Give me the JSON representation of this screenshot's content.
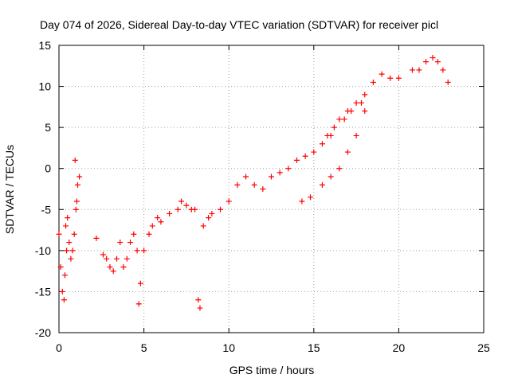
{
  "chart_data": {
    "type": "scatter",
    "title": "Day 074 of 2026, Sidereal Day-to-day VTEC variation (SDTVAR) for receiver picl",
    "xlabel": "GPS time / hours",
    "ylabel": "SDTVAR / TECUs",
    "xlim": [
      0,
      25
    ],
    "ylim": [
      -20,
      15
    ],
    "xticks": [
      0,
      5,
      10,
      15,
      20,
      25
    ],
    "yticks": [
      -20,
      -15,
      -10,
      -5,
      0,
      5,
      10,
      15
    ],
    "xtick_labels": [
      "0",
      "5",
      "10",
      "15",
      "20",
      "25"
    ],
    "ytick_labels": [
      "-20",
      "-15",
      "-10",
      "-5",
      "0",
      "5",
      "10",
      "15"
    ],
    "grid": true,
    "marker": "+",
    "series": [
      {
        "name": "SDTVAR",
        "color": "#ff0000",
        "x": [
          0.0,
          0.1,
          0.2,
          0.3,
          0.4,
          0.5,
          0.6,
          0.7,
          0.8,
          0.9,
          1.0,
          1.1,
          1.2,
          0.35,
          0.45,
          0.95,
          1.05,
          2.2,
          2.6,
          2.8,
          3.0,
          3.2,
          3.4,
          3.6,
          3.8,
          4.0,
          4.2,
          4.4,
          4.6,
          4.8,
          4.7,
          5.0,
          5.3,
          5.5,
          5.8,
          6.0,
          6.5,
          7.0,
          7.2,
          7.5,
          7.8,
          8.0,
          8.2,
          8.3,
          8.5,
          8.8,
          9.0,
          9.5,
          10.0,
          10.5,
          11.0,
          11.5,
          12.0,
          12.5,
          13.0,
          13.5,
          14.0,
          14.5,
          15.0,
          15.5,
          16.0,
          16.5,
          17.0,
          17.5,
          18.0,
          18.5,
          19.0,
          19.5,
          20.0,
          14.3,
          14.8,
          15.5,
          16.0,
          16.5,
          17.0,
          17.5,
          18.0,
          15.8,
          16.2,
          16.8,
          17.2,
          17.8,
          20.8,
          21.2,
          21.6,
          22.0,
          22.3,
          22.6,
          22.9
        ],
        "y": [
          -8,
          -12,
          -15,
          -16,
          -7,
          -6,
          -9,
          -11,
          -10,
          -8,
          -5,
          -2,
          -1,
          -13,
          -10,
          1,
          -4,
          -8.5,
          -10.5,
          -11,
          -12,
          -12.5,
          -11,
          -9,
          -12,
          -11,
          -9,
          -8,
          -10,
          -14,
          -16.5,
          -10,
          -8,
          -7,
          -6,
          -6.5,
          -5.5,
          -5,
          -4,
          -4.5,
          -5,
          -5,
          -16,
          -17,
          -7,
          -6,
          -5.5,
          -5,
          -4,
          -2,
          -1,
          -2,
          -2.5,
          -1,
          -0.5,
          0,
          1,
          1.5,
          2,
          3,
          4,
          6,
          7,
          8,
          9,
          10.5,
          11.5,
          11,
          11,
          -4,
          -3.5,
          -2,
          -1,
          0,
          2,
          4,
          7,
          4,
          5,
          6,
          7,
          8,
          12,
          12,
          13,
          13.5,
          13,
          12,
          10.5
        ]
      }
    ]
  }
}
